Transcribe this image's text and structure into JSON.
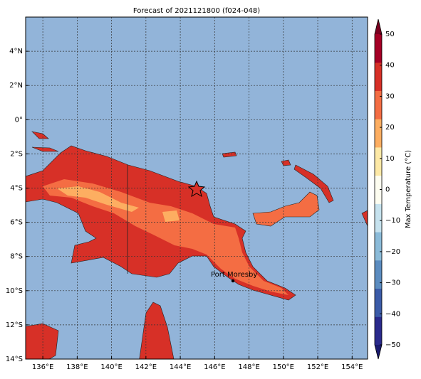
{
  "title": "Forecast of 2021121800 (f024-048)",
  "map": {
    "lonlim": [
      135,
      154.9
    ],
    "latlim": [
      6,
      -14
    ],
    "lon_ticks": [
      {
        "value": 136,
        "label": "136°E"
      },
      {
        "value": 138,
        "label": "138°E"
      },
      {
        "value": 140,
        "label": "140°E"
      },
      {
        "value": 142,
        "label": "142°E"
      },
      {
        "value": 144,
        "label": "144°E"
      },
      {
        "value": 146,
        "label": "146°E"
      },
      {
        "value": 148,
        "label": "148°E"
      },
      {
        "value": 150,
        "label": "150°E"
      },
      {
        "value": 152,
        "label": "152°E"
      },
      {
        "value": 154,
        "label": "154°E"
      }
    ],
    "lat_ticks": [
      {
        "value": 4,
        "label": "4°N"
      },
      {
        "value": 2,
        "label": "2°N"
      },
      {
        "value": 0,
        "label": "0°"
      },
      {
        "value": -2,
        "label": "2°S"
      },
      {
        "value": -4,
        "label": "4°S"
      },
      {
        "value": -6,
        "label": "6°S"
      },
      {
        "value": -8,
        "label": "8°S"
      },
      {
        "value": -10,
        "label": "10°S"
      },
      {
        "value": -12,
        "label": "12°S"
      },
      {
        "value": -14,
        "label": "14°S"
      }
    ],
    "place": "Port Moresby"
  },
  "colorbar": {
    "label": "Max Temperature (°C)",
    "lim": [
      -50,
      50
    ],
    "ticks": [
      {
        "value": -50,
        "label": "−50"
      },
      {
        "value": -40,
        "label": "−40"
      },
      {
        "value": -30,
        "label": "−30"
      },
      {
        "value": -20,
        "label": "−20"
      },
      {
        "value": -10,
        "label": "−10"
      },
      0,
      10,
      20,
      30,
      40,
      50
    ],
    "colors": [
      "#2a2a8c",
      "#3b5ba8",
      "#5b8cc0",
      "#8bbbd9",
      "#c6e2ee",
      "#fdfdf0",
      "#fde9a6",
      "#fdae61",
      "#f46d43",
      "#d73027",
      "#a50026"
    ],
    "under_color": "#1a1a6e",
    "over_color": "#7a0020"
  }
}
